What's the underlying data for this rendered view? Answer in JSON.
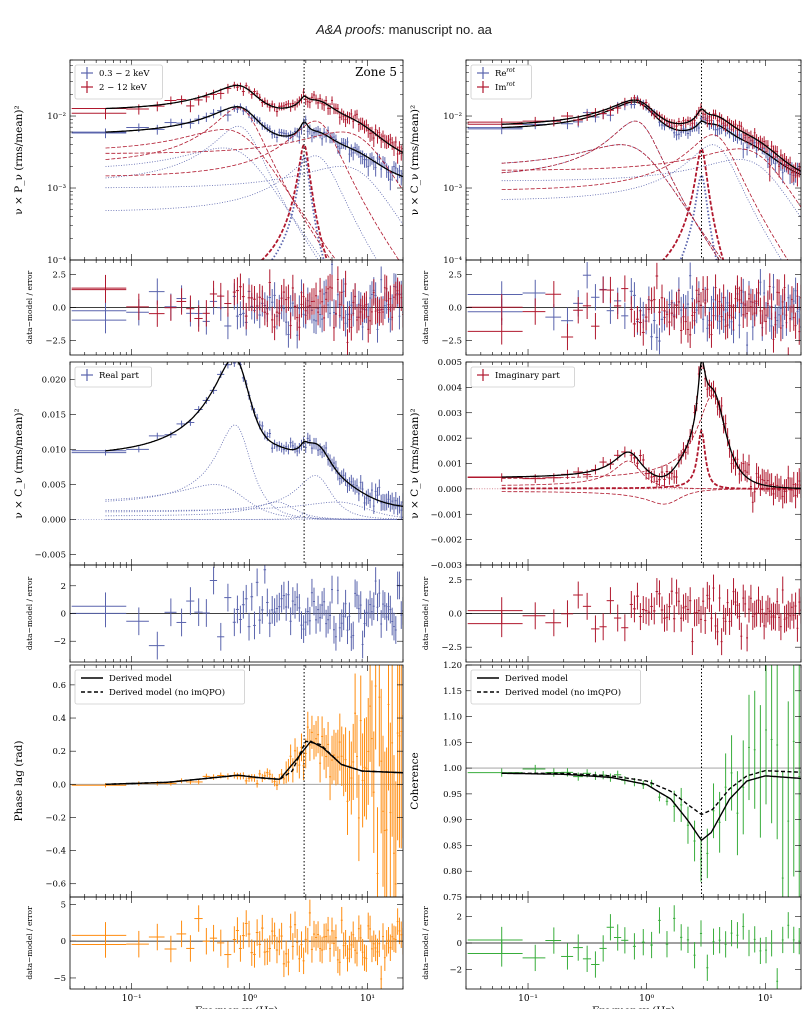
{
  "header": {
    "journal": "A&A proofs:",
    "manuscript": "manuscript no. aa"
  },
  "colors": {
    "blue": "#5a64ad",
    "red": "#b0182e",
    "orange": "#ff8c0f",
    "green": "#38ad3b",
    "black": "#000000",
    "grey": "#999999"
  },
  "chart_data": [
    {
      "id": "power",
      "type": "line",
      "title": "",
      "annotation": "Zone 5",
      "xscale": "log",
      "yscale": "log",
      "xlim": [
        0.03,
        20
      ],
      "ylim": [
        0.0001,
        0.06
      ],
      "ylabel": "ν × P_ν (rms/mean)²",
      "xticks": [],
      "yticks": [
        "10⁻⁴",
        "10⁻³",
        "10⁻²"
      ],
      "ytick_values": [
        0.0001,
        0.001,
        0.01
      ],
      "legend": {
        "placement": "top-left",
        "entries": [
          {
            "label": "0.3 − 2 keV",
            "color": "#5a64ad"
          },
          {
            "label": "2 − 12 keV",
            "color": "#b0182e"
          }
        ]
      },
      "vline": 2.9,
      "series": [
        {
          "label": "0.3 − 2 keV",
          "color": "#5a64ad",
          "kind": "data",
          "low": 0.0011,
          "components": [
            [
              0.6,
              0.0036,
              1.0
            ],
            [
              0.8,
              0.0072,
              0.45
            ],
            [
              2.9,
              0.0028,
              0.09
            ],
            [
              3.6,
              0.0028,
              0.45
            ],
            [
              6,
              0.002,
              1
            ]
          ]
        },
        {
          "label": "2 − 12 keV",
          "color": "#b0182e",
          "kind": "data",
          "low": 0.0021,
          "components": [
            [
              0.6,
              0.0065,
              1.0
            ],
            [
              0.8,
              0.013,
              0.45
            ],
            [
              2.9,
              0.004,
              0.09
            ],
            [
              3.6,
              0.0085,
              0.45
            ],
            [
              6,
              0.006,
              1
            ]
          ]
        }
      ]
    },
    {
      "id": "power-resid",
      "type": "scatter",
      "xscale": "log",
      "xlim": [
        0.03,
        20
      ],
      "ylim": [
        -3.6,
        3.6
      ],
      "ylabel": "data−model / error",
      "yticks": [
        "2.5",
        "0.0",
        "−2.5"
      ],
      "ytick_values": [
        2.5,
        0,
        -2.5
      ],
      "series": [
        {
          "color": "#5a64ad"
        },
        {
          "color": "#b0182e"
        }
      ]
    },
    {
      "id": "cross",
      "type": "line",
      "xscale": "log",
      "yscale": "log",
      "xlim": [
        0.03,
        20
      ],
      "ylim": [
        0.0001,
        0.06
      ],
      "ylabel": "ν × C_ν (rms/mean)²",
      "yticks": [
        "10⁻⁴",
        "10⁻³",
        "10⁻²"
      ],
      "ytick_values": [
        0.0001,
        0.001,
        0.01
      ],
      "legend": {
        "placement": "top-left",
        "entries": [
          {
            "label": "Re^rot",
            "color": "#5a64ad"
          },
          {
            "label": "Im^rot",
            "color": "#b0182e"
          }
        ]
      },
      "vline": 2.9,
      "series": [
        {
          "label": "Re^rot",
          "color": "#5a64ad",
          "kind": "data",
          "low": 0.0011,
          "components": [
            [
              0.6,
              0.004,
              1.0
            ],
            [
              0.8,
              0.0085,
              0.45
            ],
            [
              2.9,
              0.0015,
              0.09
            ],
            [
              3.6,
              0.004,
              0.45
            ],
            [
              6,
              0.0025,
              1
            ]
          ]
        },
        {
          "label": "Im^rot",
          "color": "#b0182e",
          "kind": "data",
          "low": 0.0011,
          "components": [
            [
              0.6,
              0.004,
              1.0
            ],
            [
              0.8,
              0.0085,
              0.45
            ],
            [
              2.9,
              0.0035,
              0.09
            ],
            [
              3.6,
              0.0055,
              0.45
            ],
            [
              6,
              0.0035,
              1
            ]
          ]
        }
      ]
    },
    {
      "id": "cross-resid",
      "type": "scatter",
      "xscale": "log",
      "xlim": [
        0.03,
        20
      ],
      "ylim": [
        -3.6,
        3.6
      ],
      "ylabel": "data−model / error",
      "yticks": [
        "2.5",
        "0.0",
        "−2.5"
      ],
      "ytick_values": [
        2.5,
        0,
        -2.5
      ],
      "series": [
        {
          "color": "#5a64ad"
        },
        {
          "color": "#b0182e"
        }
      ]
    },
    {
      "id": "real",
      "type": "line",
      "xscale": "log",
      "yscale": "linear",
      "xlim": [
        0.03,
        20
      ],
      "ylim": [
        -0.0065,
        0.0225
      ],
      "ylabel": "ν × C_ν (rms/mean)²",
      "yticks": [
        "−0.005",
        "0.000",
        "0.005",
        "0.010",
        "0.015",
        "0.020"
      ],
      "ytick_values": [
        -0.005,
        0,
        0.005,
        0.01,
        0.015,
        0.02
      ],
      "legend": {
        "placement": "top-left",
        "entries": [
          {
            "label": "Real part",
            "color": "#5a64ad"
          }
        ]
      },
      "vline": 2.9,
      "series": [
        {
          "label": "Real part",
          "color": "#5a64ad",
          "kind": "data",
          "low": 0.0015,
          "components": [
            [
              0.5,
              0.005,
              1.0
            ],
            [
              0.75,
              0.0135,
              0.45
            ],
            [
              1.7,
              0.0025,
              0.5
            ],
            [
              2.9,
              0.0009,
              0.09
            ],
            [
              3.6,
              0.0063,
              0.45
            ],
            [
              5.5,
              0.0025,
              1
            ]
          ]
        }
      ]
    },
    {
      "id": "real-resid",
      "type": "scatter",
      "xscale": "log",
      "xlim": [
        0.03,
        20
      ],
      "ylim": [
        -3.5,
        3.5
      ],
      "ylabel": "data−model / error",
      "yticks": [
        "2",
        "0",
        "−2"
      ],
      "ytick_values": [
        2,
        0,
        -2
      ],
      "series": [
        {
          "color": "#5a64ad"
        }
      ]
    },
    {
      "id": "imag",
      "type": "line",
      "xscale": "log",
      "yscale": "linear",
      "xlim": [
        0.03,
        20
      ],
      "ylim": [
        -0.003,
        0.005
      ],
      "ylabel": "ν × C_ν (rms/mean)²",
      "yticks": [
        "−0.003",
        "−0.002",
        "−0.001",
        "0.000",
        "0.001",
        "0.002",
        "0.003",
        "0.004",
        "0.005"
      ],
      "ytick_values": [
        -0.003,
        -0.002,
        -0.001,
        0,
        0.001,
        0.002,
        0.003,
        0.004,
        0.005
      ],
      "legend": {
        "placement": "top-left",
        "entries": [
          {
            "label": "Imaginary part",
            "color": "#b0182e"
          }
        ]
      },
      "vline": 2.9,
      "series": [
        {
          "label": "Imaginary part",
          "color": "#b0182e",
          "kind": "data",
          "low": 0.0,
          "components": [
            [
              0.7,
              0.0011,
              0.35
            ],
            [
              2.9,
              0.0023,
              0.09
            ],
            [
              3.6,
              0.0037,
              0.35
            ],
            [
              1.4,
              -0.0006,
              0.45
            ]
          ]
        }
      ]
    },
    {
      "id": "imag-resid",
      "type": "scatter",
      "xscale": "log",
      "xlim": [
        0.03,
        20
      ],
      "ylim": [
        -3.6,
        3.6
      ],
      "ylabel": "data−model / error",
      "yticks": [
        "2.5",
        "0.0",
        "−2.5"
      ],
      "ytick_values": [
        2.5,
        0,
        -2.5
      ],
      "series": [
        {
          "color": "#b0182e"
        }
      ]
    },
    {
      "id": "lag",
      "type": "line",
      "xscale": "log",
      "yscale": "linear",
      "xlim": [
        0.03,
        20
      ],
      "ylim": [
        -0.68,
        0.72
      ],
      "ylabel": "Phase lag (rad)",
      "yticks": [
        "−0.6",
        "−0.4",
        "−0.2",
        "0.0",
        "0.2",
        "0.4",
        "0.6"
      ],
      "ytick_values": [
        -0.6,
        -0.4,
        -0.2,
        0,
        0.2,
        0.4,
        0.6
      ],
      "legend": {
        "placement": "top-left",
        "entries": [
          {
            "label": "Derived model",
            "style": "solid"
          },
          {
            "label": "Derived model (no imQPO)",
            "style": "dashed"
          }
        ]
      },
      "vline": 2.9,
      "model": [
        [
          0.06,
          0.0
        ],
        [
          0.2,
          0.012
        ],
        [
          0.5,
          0.04
        ],
        [
          0.8,
          0.055
        ],
        [
          1.2,
          0.04
        ],
        [
          1.8,
          0.03
        ],
        [
          2.5,
          0.15
        ],
        [
          3.3,
          0.26
        ],
        [
          4.2,
          0.22
        ],
        [
          6,
          0.12
        ],
        [
          9,
          0.08
        ],
        [
          20,
          0.07
        ]
      ],
      "model_noimqpo": [
        [
          0.06,
          0.0
        ],
        [
          0.2,
          0.012
        ],
        [
          0.5,
          0.04
        ],
        [
          0.8,
          0.055
        ],
        [
          1.2,
          0.04
        ],
        [
          1.8,
          0.03
        ],
        [
          2.3,
          0.08
        ],
        [
          3.0,
          0.26
        ],
        [
          4.0,
          0.24
        ],
        [
          6,
          0.12
        ],
        [
          9,
          0.08
        ],
        [
          20,
          0.07
        ]
      ],
      "series": [
        {
          "label": "Phase lag",
          "color": "#ff8c0f"
        }
      ]
    },
    {
      "id": "lag-resid",
      "type": "scatter",
      "xscale": "log",
      "xlim": [
        0.03,
        20
      ],
      "ylim": [
        -6.5,
        6
      ],
      "ylabel": "data−model / error",
      "yticks": [
        "5",
        "0",
        "−5"
      ],
      "ytick_values": [
        5,
        0,
        -5
      ],
      "xlabel": "Frequency (Hz)",
      "xticks": [
        "10⁻¹",
        "10⁰",
        "10¹"
      ],
      "xtick_values": [
        0.1,
        1,
        10
      ],
      "series": [
        {
          "color": "#ff8c0f"
        }
      ]
    },
    {
      "id": "coherence",
      "type": "line",
      "xscale": "log",
      "yscale": "linear",
      "xlim": [
        0.03,
        20
      ],
      "ylim": [
        0.75,
        1.2
      ],
      "ylabel": "Coherence",
      "yticks": [
        "0.75",
        "0.80",
        "0.85",
        "0.90",
        "0.95",
        "1.00",
        "1.05",
        "1.10",
        "1.15",
        "1.20"
      ],
      "ytick_values": [
        0.75,
        0.8,
        0.85,
        0.9,
        0.95,
        1.0,
        1.05,
        1.1,
        1.15,
        1.2
      ],
      "legend": {
        "placement": "top-left",
        "entries": [
          {
            "label": "Derived model",
            "style": "solid"
          },
          {
            "label": "Derived model (no imQPO)",
            "style": "dashed"
          }
        ]
      },
      "vline": 2.9,
      "model": [
        [
          0.06,
          0.99
        ],
        [
          0.2,
          0.988
        ],
        [
          0.5,
          0.982
        ],
        [
          1.0,
          0.968
        ],
        [
          1.6,
          0.94
        ],
        [
          2.2,
          0.9
        ],
        [
          2.9,
          0.86
        ],
        [
          3.5,
          0.875
        ],
        [
          5,
          0.94
        ],
        [
          7,
          0.975
        ],
        [
          10,
          0.985
        ],
        [
          20,
          0.98
        ]
      ],
      "model_noimqpo": [
        [
          0.06,
          0.99
        ],
        [
          0.2,
          0.99
        ],
        [
          0.5,
          0.985
        ],
        [
          1.0,
          0.975
        ],
        [
          1.6,
          0.955
        ],
        [
          2.2,
          0.93
        ],
        [
          2.9,
          0.91
        ],
        [
          3.6,
          0.92
        ],
        [
          5,
          0.96
        ],
        [
          7,
          0.985
        ],
        [
          10,
          0.995
        ],
        [
          20,
          0.992
        ]
      ],
      "series": [
        {
          "label": "Coherence",
          "color": "#38ad3b"
        }
      ]
    },
    {
      "id": "coherence-resid",
      "type": "scatter",
      "xscale": "log",
      "xlim": [
        0.03,
        20
      ],
      "ylim": [
        -3.5,
        3.5
      ],
      "ylabel": "data−model / error",
      "yticks": [
        "2",
        "0",
        "−2"
      ],
      "ytick_values": [
        2,
        0,
        -2
      ],
      "xlabel": "Frequency (Hz)",
      "xticks": [
        "10⁻¹",
        "10⁰",
        "10¹"
      ],
      "xtick_values": [
        0.1,
        1,
        10
      ],
      "series": [
        {
          "color": "#38ad3b"
        }
      ]
    }
  ]
}
